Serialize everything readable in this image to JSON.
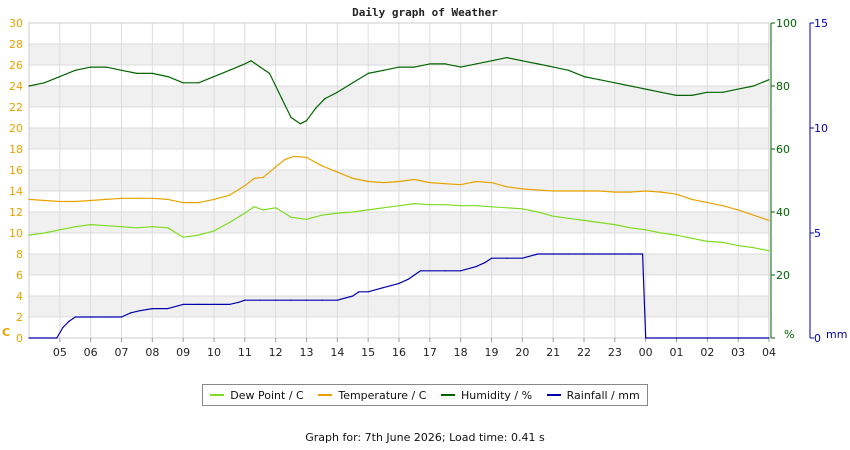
{
  "title": "Daily graph of Weather",
  "footer": "Graph for: 7th June 2026; Load time: 0.41 s",
  "colors": {
    "dew_point": "#7ddc1f",
    "temperature": "#e8a200",
    "humidity": "#006400",
    "rainfall": "#0000aa",
    "left_axis": "#e8a200",
    "humidity_axis": "#006400",
    "rain_axis": "#0000aa",
    "band": "#f0f0f0",
    "grid": "#dddddd"
  },
  "legend": [
    {
      "label": "Dew Point / C",
      "color": "#7ddc1f"
    },
    {
      "label": "Temperature / C",
      "color": "#e8a200"
    },
    {
      "label": "Humidity / %",
      "color": "#006400"
    },
    {
      "label": "Rainfall / mm",
      "color": "#0000aa"
    }
  ],
  "chart_data": {
    "type": "line",
    "title": "Daily graph of Weather",
    "grid": true,
    "legend_position": "bottom",
    "x_tick_labels": [
      "05",
      "06",
      "07",
      "08",
      "09",
      "10",
      "11",
      "12",
      "13",
      "14",
      "15",
      "16",
      "17",
      "18",
      "19",
      "20",
      "21",
      "22",
      "23",
      "00",
      "01",
      "02",
      "03",
      "04"
    ],
    "axes": {
      "left": {
        "unit_label": "C",
        "ylim": [
          0,
          30
        ],
        "ticks": [
          0,
          2,
          4,
          6,
          8,
          10,
          12,
          14,
          16,
          18,
          20,
          22,
          24,
          26,
          28,
          30
        ]
      },
      "humidity": {
        "unit_label": "%",
        "ylim": [
          0,
          100
        ],
        "ticks": [
          0,
          20,
          40,
          60,
          80,
          100
        ]
      },
      "rain": {
        "unit_label": "mm",
        "ylim": [
          0,
          15
        ],
        "ticks": [
          0,
          5,
          10,
          15
        ]
      }
    },
    "series": [
      {
        "name": "Dew Point / C",
        "axis": "left",
        "x": [
          4.0,
          4.5,
          5.0,
          5.5,
          6.0,
          6.5,
          7.0,
          7.5,
          8.0,
          8.5,
          9.0,
          9.5,
          10.0,
          10.5,
          11.0,
          11.3,
          11.6,
          12.0,
          12.5,
          13.0,
          13.5,
          14.0,
          14.5,
          15.0,
          15.5,
          16.0,
          16.5,
          17.0,
          17.5,
          18.0,
          18.5,
          19.0,
          19.5,
          20.0,
          20.5,
          21.0,
          21.5,
          22.0,
          22.5,
          23.0,
          23.5,
          24.0,
          24.5,
          25.0,
          25.5,
          26.0,
          26.5,
          27.0,
          27.5,
          28.0
        ],
        "y": [
          9.8,
          10.0,
          10.3,
          10.6,
          10.8,
          10.7,
          10.6,
          10.5,
          10.6,
          10.5,
          9.6,
          9.8,
          10.2,
          11.0,
          11.9,
          12.5,
          12.2,
          12.4,
          11.5,
          11.3,
          11.7,
          11.9,
          12.0,
          12.2,
          12.4,
          12.6,
          12.8,
          12.7,
          12.7,
          12.6,
          12.6,
          12.5,
          12.4,
          12.3,
          12.0,
          11.6,
          11.4,
          11.2,
          11.0,
          10.8,
          10.5,
          10.3,
          10.0,
          9.8,
          9.5,
          9.2,
          9.1,
          8.8,
          8.6,
          8.3
        ]
      },
      {
        "name": "Temperature / C",
        "axis": "left",
        "x": [
          4.0,
          4.5,
          5.0,
          5.5,
          6.0,
          6.5,
          7.0,
          7.5,
          8.0,
          8.5,
          9.0,
          9.5,
          10.0,
          10.5,
          11.0,
          11.3,
          11.6,
          12.0,
          12.3,
          12.6,
          13.0,
          13.5,
          14.0,
          14.5,
          15.0,
          15.5,
          16.0,
          16.5,
          17.0,
          17.5,
          18.0,
          18.5,
          19.0,
          19.5,
          20.0,
          20.5,
          21.0,
          21.5,
          22.0,
          22.5,
          23.0,
          23.5,
          24.0,
          24.5,
          25.0,
          25.5,
          26.0,
          26.5,
          27.0,
          27.5,
          28.0
        ],
        "y": [
          13.2,
          13.1,
          13.0,
          13.0,
          13.1,
          13.2,
          13.3,
          13.3,
          13.3,
          13.2,
          12.9,
          12.9,
          13.2,
          13.6,
          14.5,
          15.2,
          15.3,
          16.3,
          17.0,
          17.3,
          17.2,
          16.4,
          15.8,
          15.2,
          14.9,
          14.8,
          14.9,
          15.1,
          14.8,
          14.7,
          14.6,
          14.9,
          14.8,
          14.4,
          14.2,
          14.1,
          14.0,
          14.0,
          14.0,
          14.0,
          13.9,
          13.9,
          14.0,
          13.9,
          13.7,
          13.2,
          12.9,
          12.6,
          12.2,
          11.7,
          11.2
        ]
      },
      {
        "name": "Humidity / %",
        "axis": "humidity",
        "x": [
          4.0,
          4.5,
          5.0,
          5.5,
          6.0,
          6.5,
          7.0,
          7.5,
          8.0,
          8.5,
          9.0,
          9.5,
          10.0,
          10.5,
          11.0,
          11.2,
          11.5,
          11.8,
          12.0,
          12.2,
          12.5,
          12.8,
          13.0,
          13.3,
          13.6,
          14.0,
          14.5,
          15.0,
          15.5,
          16.0,
          16.5,
          17.0,
          17.5,
          18.0,
          18.5,
          19.0,
          19.5,
          20.0,
          20.5,
          21.0,
          21.5,
          22.0,
          22.5,
          23.0,
          23.5,
          24.0,
          24.5,
          25.0,
          25.5,
          26.0,
          26.5,
          27.0,
          27.5,
          28.0
        ],
        "y": [
          80,
          81,
          83,
          85,
          86,
          86,
          85,
          84,
          84,
          83,
          81,
          81,
          83,
          85,
          87,
          88,
          86,
          84,
          80,
          76,
          70,
          68,
          69,
          73,
          76,
          78,
          81,
          84,
          85,
          86,
          86,
          87,
          87,
          86,
          87,
          88,
          89,
          88,
          87,
          86,
          85,
          83,
          82,
          81,
          80,
          79,
          78,
          77,
          77,
          78,
          78,
          79,
          80,
          82
        ]
      },
      {
        "name": "Rainfall / mm",
        "axis": "rain",
        "x": [
          4.0,
          4.9,
          5.1,
          5.3,
          5.5,
          6.0,
          6.5,
          7.0,
          7.3,
          7.6,
          8.0,
          8.5,
          9.0,
          9.5,
          10.0,
          10.5,
          10.8,
          11.0,
          11.5,
          12.0,
          12.5,
          13.0,
          13.5,
          14.0,
          14.5,
          14.7,
          15.0,
          15.5,
          16.0,
          16.3,
          16.5,
          16.7,
          17.0,
          17.5,
          18.0,
          18.5,
          18.8,
          19.0,
          19.5,
          20.0,
          20.5,
          21.0,
          21.5,
          22.0,
          22.5,
          23.0,
          23.5,
          23.9,
          24.0,
          24.5,
          25.0,
          26.0,
          27.0,
          28.0
        ],
        "y": [
          0,
          0,
          0.5,
          0.8,
          1.0,
          1.0,
          1.0,
          1.0,
          1.2,
          1.3,
          1.4,
          1.4,
          1.6,
          1.6,
          1.6,
          1.6,
          1.7,
          1.8,
          1.8,
          1.8,
          1.8,
          1.8,
          1.8,
          1.8,
          2.0,
          2.2,
          2.2,
          2.4,
          2.6,
          2.8,
          3.0,
          3.2,
          3.2,
          3.2,
          3.2,
          3.4,
          3.6,
          3.8,
          3.8,
          3.8,
          4.0,
          4.0,
          4.0,
          4.0,
          4.0,
          4.0,
          4.0,
          4.0,
          0,
          0,
          0,
          0,
          0,
          0
        ]
      }
    ]
  }
}
